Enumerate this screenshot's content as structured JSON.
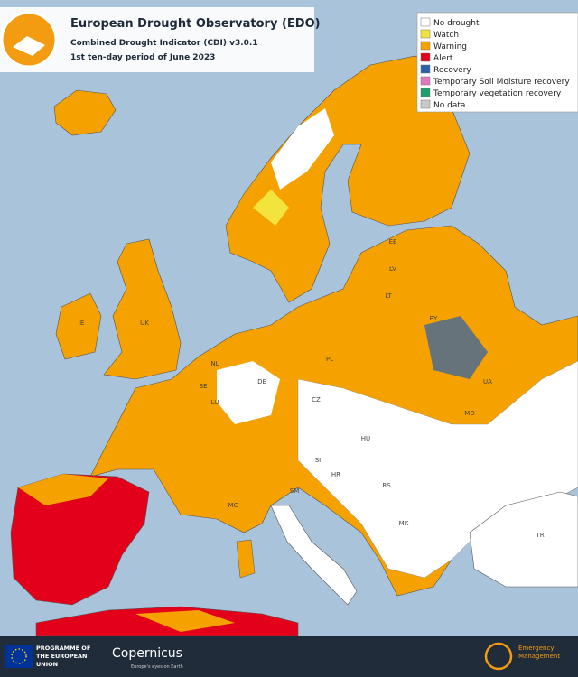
{
  "header": {
    "title": "European Drought Observatory (EDO)",
    "subtitle": "Combined Drought Indicator (CDI) v3.0.1",
    "period": "1st ten-day period of June 2023"
  },
  "legend": [
    {
      "label": "No drought",
      "color": "#ffffff"
    },
    {
      "label": "Watch",
      "color": "#f2e43c"
    },
    {
      "label": "Warning",
      "color": "#f5a100"
    },
    {
      "label": "Alert",
      "color": "#e3001b"
    },
    {
      "label": "Recovery",
      "color": "#2a5fae"
    },
    {
      "label": "Temporary Soil Moisture recovery",
      "color": "#e277c4"
    },
    {
      "label": "Temporary vegetation recovery",
      "color": "#1f9e6e"
    },
    {
      "label": "No data",
      "color": "#c9c9c9"
    }
  ],
  "country_labels": [
    "IE",
    "UK",
    "NL",
    "BE",
    "LU",
    "DE",
    "PL",
    "CZ",
    "LT",
    "LV",
    "EE",
    "BY",
    "UA",
    "MD",
    "HU",
    "SI",
    "HR",
    "RS",
    "SM",
    "MC",
    "MK",
    "TR"
  ],
  "footer": {
    "eu": "PROGRAMME OF THE EUROPEAN UNION",
    "copernicus": "Copernicus",
    "tagline": "Europe's eyes on Earth",
    "ems": "Emergency Management"
  }
}
